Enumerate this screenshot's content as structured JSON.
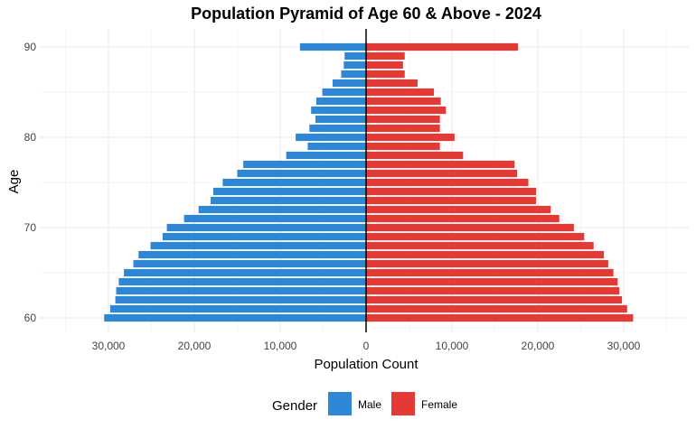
{
  "chart_data": {
    "type": "bar",
    "orientation": "horizontal-pyramid",
    "title": "Population Pyramid of Age 60 & Above - 2024",
    "xlabel": "Population Count",
    "ylabel": "Age",
    "xlim": [
      -35000,
      35000
    ],
    "ylim": [
      60,
      90
    ],
    "x_ticks": [
      -30000,
      -20000,
      -10000,
      0,
      10000,
      20000,
      30000
    ],
    "x_tick_labels": [
      "30,000",
      "20,000",
      "10,000",
      "0",
      "10,000",
      "20,000",
      "30,000"
    ],
    "y_ticks": [
      60,
      70,
      80,
      90
    ],
    "y_tick_labels": [
      "60",
      "70",
      "80",
      "90"
    ],
    "grid": true,
    "legend": {
      "title": "Gender",
      "placement": "bottom"
    },
    "ages": [
      60,
      61,
      62,
      63,
      64,
      65,
      66,
      67,
      68,
      69,
      70,
      71,
      72,
      73,
      74,
      75,
      76,
      77,
      78,
      79,
      80,
      81,
      82,
      83,
      84,
      85,
      86,
      87,
      88,
      89,
      90
    ],
    "series": [
      {
        "name": "Male",
        "color": "#2E86D6",
        "values": [
          30500,
          29800,
          29200,
          29100,
          28800,
          28200,
          27100,
          26500,
          25100,
          23700,
          23200,
          21200,
          19500,
          18100,
          17800,
          16700,
          15000,
          14300,
          9300,
          6800,
          8200,
          6600,
          5900,
          6400,
          5800,
          5100,
          3900,
          2900,
          2600,
          2500,
          7700
        ]
      },
      {
        "name": "Female",
        "color": "#E53935",
        "values": [
          31100,
          30400,
          29800,
          29500,
          29300,
          28800,
          28200,
          27700,
          26500,
          25400,
          24200,
          22500,
          21500,
          19800,
          19800,
          18900,
          17600,
          17300,
          11300,
          8600,
          10300,
          8600,
          8600,
          9300,
          8700,
          7900,
          6000,
          4500,
          4300,
          4500,
          17700
        ]
      }
    ]
  }
}
